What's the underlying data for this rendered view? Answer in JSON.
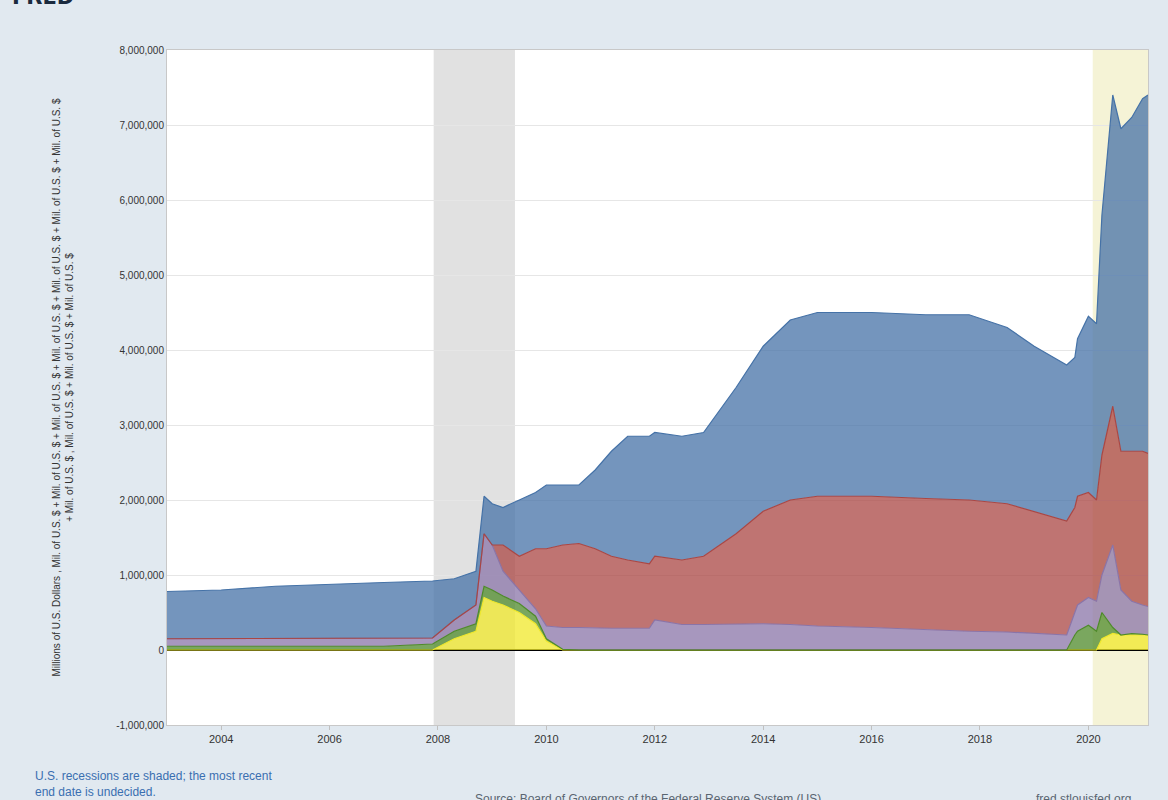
{
  "chart_data": {
    "type": "area",
    "stacked": true,
    "grid": true,
    "logo": "FRED",
    "y_label": [
      "Millions of U.S. Dollars , Mil. of U.S. $ + Mil. of U.S. $ + Mil. of U.S. $ + Mil. of U.S. $ + Mil. of U.S. $ + Mil. of U.S. $ + Mil. of U.S. $",
      "+ Mil. of U.S. $ , Mil. of U.S. $ + Mil. of U.S. $ + Mil. of U.S. $"
    ],
    "note": [
      "U.S. recessions are shaded; the most recent",
      "end date is undecided."
    ],
    "source": "Source: Board of Governors of the Federal Reserve System (US)",
    "site": "fred.stlouisfed.org",
    "xlim": [
      2003,
      2021.1
    ],
    "xticks": [
      2004,
      2006,
      2008,
      2010,
      2012,
      2014,
      2016,
      2018,
      2020
    ],
    "ylim": [
      -1000000,
      8000000
    ],
    "yticks": [
      {
        "value": -1000000,
        "label": "-1,000,000"
      },
      0,
      {
        "value": 1000000,
        "label": "1,000,000"
      },
      {
        "value": 2000000,
        "label": "2,000,000"
      },
      {
        "value": 3000000,
        "label": "3,000,000"
      },
      {
        "value": 4000000,
        "label": "4,000,000"
      },
      {
        "value": 5000000,
        "label": "5,000,000"
      },
      {
        "value": 6000000,
        "label": "6,000,000"
      },
      {
        "value": 7000000,
        "label": "7,000,000"
      },
      {
        "value": 8000000,
        "label": "8,000,000"
      }
    ],
    "recessions": [
      {
        "start": 2007.92,
        "end": 2009.42
      },
      {
        "start": 2020.08,
        "end": 2021.1
      }
    ],
    "x": [
      2003,
      2004,
      2005,
      2006,
      2007,
      2007.9,
      2008.3,
      2008.7,
      2008.85,
      2009.0,
      2009.2,
      2009.5,
      2009.8,
      2010.0,
      2010.3,
      2010.6,
      2010.9,
      2011.2,
      2011.5,
      2011.9,
      2012.0,
      2012.5,
      2012.9,
      2013.5,
      2014.0,
      2014.5,
      2015.0,
      2016.0,
      2017.0,
      2017.8,
      2018.5,
      2019.0,
      2019.6,
      2019.75,
      2019.8,
      2020.0,
      2020.15,
      2020.25,
      2020.45,
      2020.6,
      2020.8,
      2021.0,
      2021.1
    ],
    "series": [
      {
        "color": "#f0e82a",
        "values": [
          0,
          0,
          0,
          0,
          0,
          0,
          150000,
          250000,
          700000,
          650000,
          600000,
          500000,
          350000,
          120000,
          0,
          0,
          0,
          0,
          0,
          0,
          0,
          0,
          0,
          0,
          0,
          0,
          0,
          0,
          0,
          0,
          0,
          0,
          0,
          0,
          0,
          0,
          0,
          150000,
          220000,
          200000,
          200000,
          200000,
          200000
        ]
      },
      {
        "color": "#4e8a2a",
        "values": [
          50000,
          50000,
          50000,
          50000,
          50000,
          80000,
          100000,
          100000,
          150000,
          150000,
          120000,
          120000,
          100000,
          30000,
          10000,
          0,
          0,
          0,
          0,
          0,
          0,
          0,
          0,
          0,
          0,
          0,
          0,
          0,
          0,
          0,
          0,
          0,
          0,
          200000,
          250000,
          330000,
          250000,
          350000,
          80000,
          0,
          20000,
          10000,
          0
        ]
      },
      {
        "color": "#8a74a8",
        "values": [
          100000,
          100000,
          100000,
          100000,
          100000,
          80000,
          150000,
          250000,
          700000,
          600000,
          330000,
          180000,
          100000,
          170000,
          290000,
          300000,
          290000,
          290000,
          290000,
          290000,
          400000,
          340000,
          340000,
          350000,
          350000,
          340000,
          320000,
          300000,
          270000,
          250000,
          240000,
          220000,
          200000,
          300000,
          350000,
          370000,
          400000,
          500000,
          1100000,
          600000,
          430000,
          390000,
          380000
        ]
      },
      {
        "color": "#aa4643",
        "values": [
          0,
          0,
          0,
          0,
          0,
          0,
          0,
          0,
          0,
          0,
          350000,
          450000,
          800000,
          1030000,
          1100000,
          1120000,
          1060000,
          960000,
          910000,
          860000,
          850000,
          860000,
          910000,
          1200000,
          1500000,
          1660000,
          1730000,
          1750000,
          1750000,
          1750000,
          1710000,
          1630000,
          1520000,
          1400000,
          1450000,
          1400000,
          1350000,
          1600000,
          1850000,
          1850000,
          2000000,
          2050000,
          2040000
        ]
      },
      {
        "color": "#4572a7",
        "values": [
          630000,
          650000,
          700000,
          730000,
          750000,
          760000,
          550000,
          450000,
          500000,
          550000,
          500000,
          750000,
          750000,
          850000,
          800000,
          780000,
          1050000,
          1400000,
          1650000,
          1700000,
          1650000,
          1650000,
          1650000,
          1950000,
          2200000,
          2400000,
          2450000,
          2450000,
          2450000,
          2470000,
          2350000,
          2200000,
          2080000,
          2000000,
          2100000,
          2350000,
          2350000,
          3200000,
          4150000,
          4300000,
          4450000,
          4700000,
          4780000
        ]
      }
    ]
  }
}
